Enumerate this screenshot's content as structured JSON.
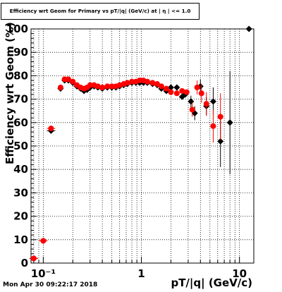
{
  "title": "Efficiency wrt Geom for Primary vs pT/|q| (GeV/c) at | η | <= 1.0",
  "timestamp": "Mon Apr 30 09:22:17 2018",
  "colors": {
    "black_series": "#000000",
    "red_series": "#ff0000",
    "grid": "#000000"
  },
  "chart_data": {
    "type": "scatter",
    "title": "Efficiency wrt Geom for Primary vs pT/|q| (GeV/c) at | η | <= 1.0",
    "xlabel": "pT/|q| (GeV/c)",
    "ylabel": "Efficiency wrt Geom (%)",
    "x_scale": "log",
    "xlim": [
      0.075,
      14
    ],
    "ylim": [
      0,
      100
    ],
    "x_ticks": [
      {
        "value": 0.1,
        "label": "10⁻¹"
      },
      {
        "value": 1,
        "label": "1"
      },
      {
        "value": 10,
        "label": "10"
      }
    ],
    "y_ticks": [
      0,
      10,
      20,
      30,
      40,
      50,
      60,
      70,
      80,
      90,
      100
    ],
    "grid": true,
    "series": [
      {
        "marker": "diamond",
        "color": "#000000",
        "points": [
          {
            "x": 0.08,
            "y": 2
          },
          {
            "x": 0.1,
            "y": 9.5
          },
          {
            "x": 0.12,
            "y": 56.5
          },
          {
            "x": 0.15,
            "y": 74.5
          },
          {
            "x": 0.165,
            "y": 78
          },
          {
            "x": 0.18,
            "y": 78
          },
          {
            "x": 0.2,
            "y": 77
          },
          {
            "x": 0.22,
            "y": 75.5
          },
          {
            "x": 0.24,
            "y": 74.5
          },
          {
            "x": 0.26,
            "y": 73.5
          },
          {
            "x": 0.28,
            "y": 74
          },
          {
            "x": 0.3,
            "y": 75
          },
          {
            "x": 0.33,
            "y": 75.5
          },
          {
            "x": 0.36,
            "y": 75
          },
          {
            "x": 0.4,
            "y": 74.5
          },
          {
            "x": 0.45,
            "y": 75
          },
          {
            "x": 0.5,
            "y": 75
          },
          {
            "x": 0.55,
            "y": 75
          },
          {
            "x": 0.6,
            "y": 75.5
          },
          {
            "x": 0.66,
            "y": 76
          },
          {
            "x": 0.72,
            "y": 76.5
          },
          {
            "x": 0.8,
            "y": 77
          },
          {
            "x": 0.88,
            "y": 77
          },
          {
            "x": 0.96,
            "y": 77
          },
          {
            "x": 1.05,
            "y": 77
          },
          {
            "x": 1.15,
            "y": 77
          },
          {
            "x": 1.3,
            "y": 76.5
          },
          {
            "x": 1.45,
            "y": 76
          },
          {
            "x": 1.6,
            "y": 74.5
          },
          {
            "x": 1.8,
            "y": 73.5
          },
          {
            "x": 2.0,
            "y": 75
          },
          {
            "x": 2.3,
            "y": 75
          },
          {
            "x": 2.6,
            "y": 71
          },
          {
            "x": 2.8,
            "y": 72
          },
          {
            "x": 3.2,
            "y": 69,
            "err": 2.5
          },
          {
            "x": 3.5,
            "y": 64,
            "err": 3
          },
          {
            "x": 4.0,
            "y": 75.5,
            "err": 3
          },
          {
            "x": 4.6,
            "y": 67,
            "err": 4
          },
          {
            "x": 5.4,
            "y": 69,
            "err": 6
          },
          {
            "x": 6.4,
            "y": 52,
            "err": 11
          },
          {
            "x": 8.0,
            "y": 60,
            "err": 22
          },
          {
            "x": 12.5,
            "y": 100
          }
        ]
      },
      {
        "marker": "circle",
        "color": "#ff0000",
        "points": [
          {
            "x": 0.08,
            "y": 2
          },
          {
            "x": 0.1,
            "y": 9.5
          },
          {
            "x": 0.12,
            "y": 57.5
          },
          {
            "x": 0.15,
            "y": 75
          },
          {
            "x": 0.165,
            "y": 78.5
          },
          {
            "x": 0.18,
            "y": 78.5
          },
          {
            "x": 0.2,
            "y": 77.5
          },
          {
            "x": 0.22,
            "y": 76
          },
          {
            "x": 0.24,
            "y": 75
          },
          {
            "x": 0.26,
            "y": 74.5
          },
          {
            "x": 0.28,
            "y": 75
          },
          {
            "x": 0.3,
            "y": 76
          },
          {
            "x": 0.33,
            "y": 76
          },
          {
            "x": 0.36,
            "y": 75.5
          },
          {
            "x": 0.4,
            "y": 75
          },
          {
            "x": 0.45,
            "y": 75.5
          },
          {
            "x": 0.5,
            "y": 75.5
          },
          {
            "x": 0.55,
            "y": 75.5
          },
          {
            "x": 0.6,
            "y": 76
          },
          {
            "x": 0.66,
            "y": 76.5
          },
          {
            "x": 0.72,
            "y": 77
          },
          {
            "x": 0.8,
            "y": 77.5
          },
          {
            "x": 0.88,
            "y": 77.5
          },
          {
            "x": 0.96,
            "y": 78
          },
          {
            "x": 1.05,
            "y": 78
          },
          {
            "x": 1.15,
            "y": 77.5
          },
          {
            "x": 1.3,
            "y": 77
          },
          {
            "x": 1.45,
            "y": 76.5
          },
          {
            "x": 1.6,
            "y": 75.5
          },
          {
            "x": 1.8,
            "y": 74.5
          },
          {
            "x": 2.0,
            "y": 73
          },
          {
            "x": 2.3,
            "y": 72.5
          },
          {
            "x": 2.6,
            "y": 73.5
          },
          {
            "x": 2.9,
            "y": 73
          },
          {
            "x": 3.3,
            "y": 65.5,
            "err": 3
          },
          {
            "x": 3.7,
            "y": 75,
            "err": 3
          },
          {
            "x": 4.1,
            "y": 72.5,
            "err": 4
          },
          {
            "x": 4.6,
            "y": 68,
            "err": 5
          },
          {
            "x": 5.4,
            "y": 58.5,
            "err": 7
          },
          {
            "x": 6.4,
            "y": 62.5,
            "err": 10
          }
        ]
      }
    ]
  }
}
